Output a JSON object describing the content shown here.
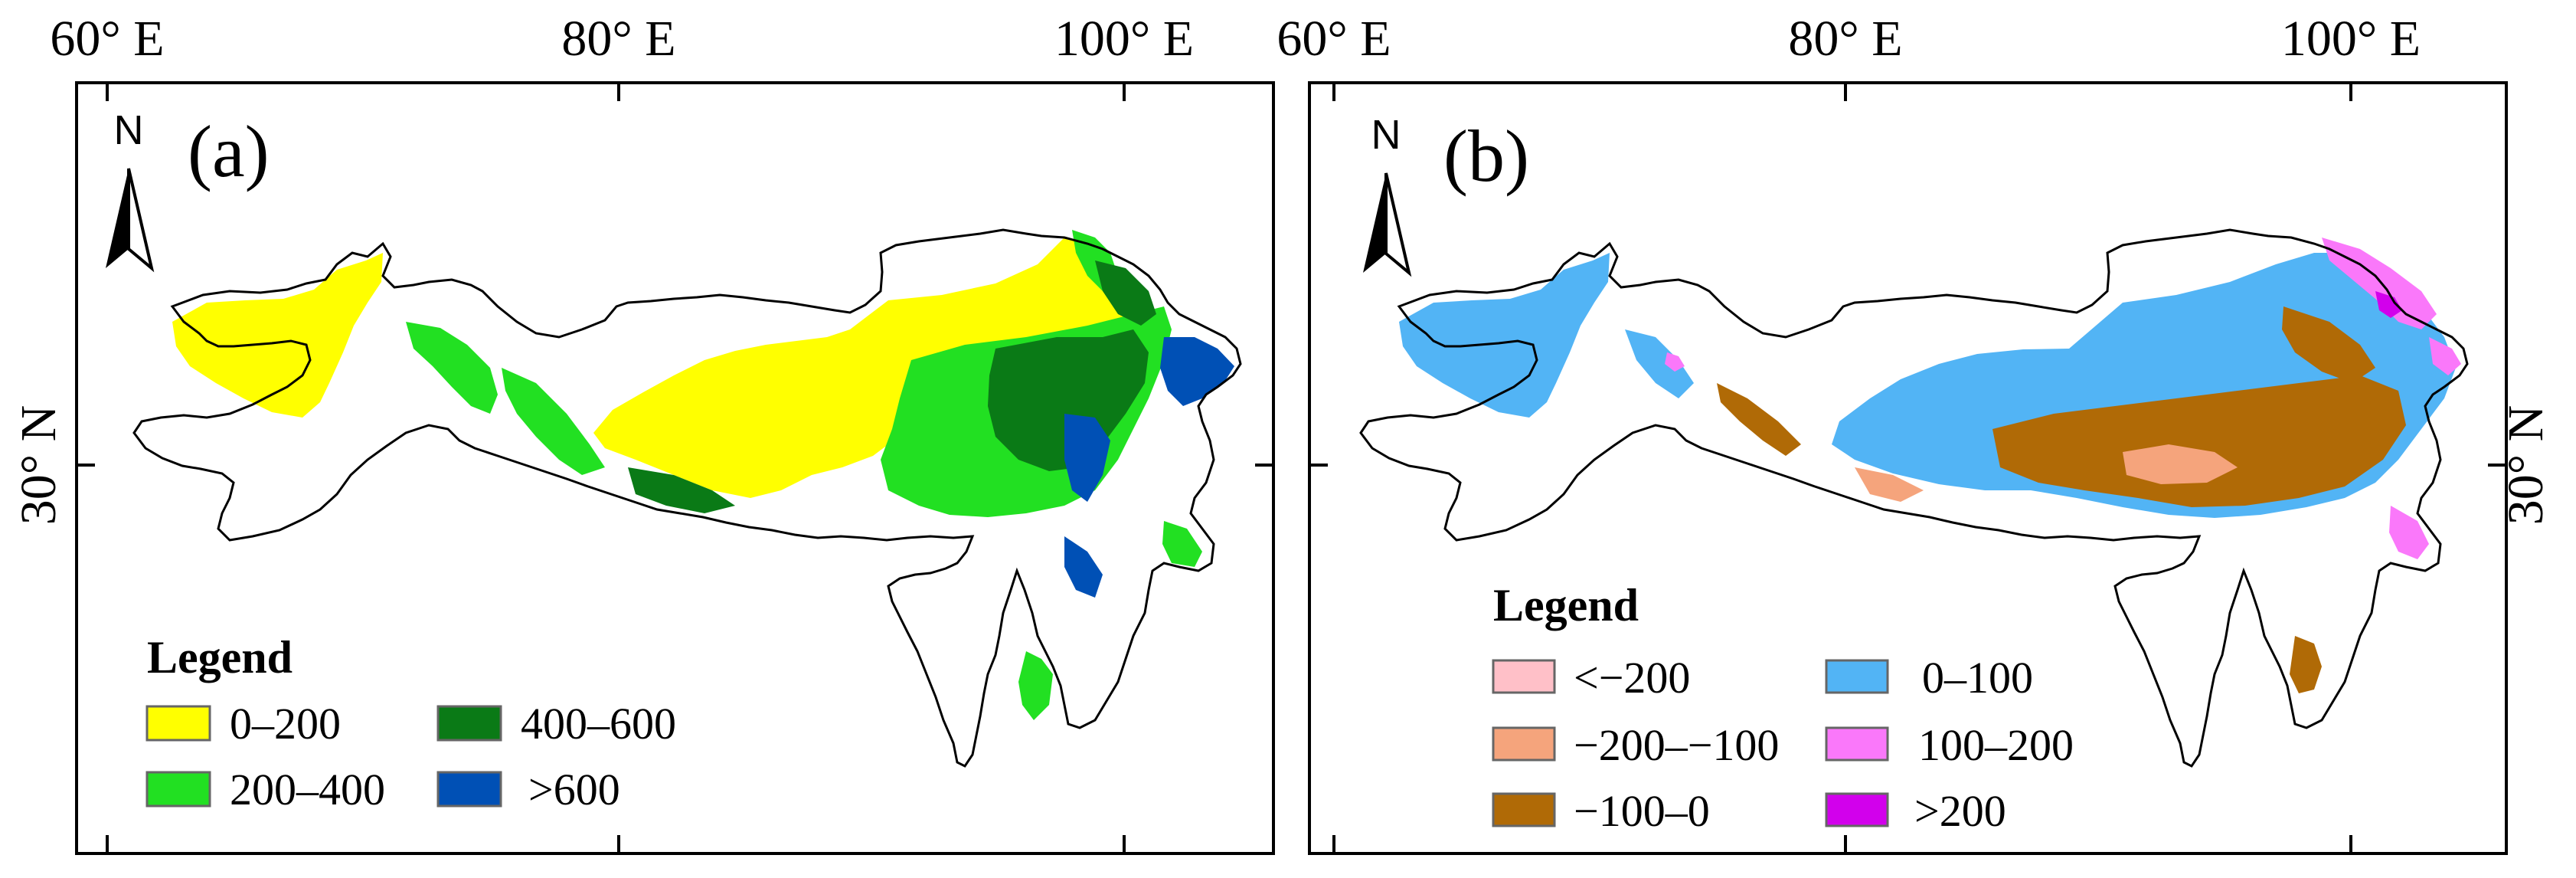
{
  "panels": [
    {
      "id": "a",
      "label": "(a)",
      "top_ticks": [
        "60° E",
        "80° E",
        "100° E"
      ],
      "lat_label": "30° N",
      "north_label": "N",
      "legend": {
        "title": "Legend",
        "items": [
          {
            "label": "0–200",
            "color": "#ffff00"
          },
          {
            "label": "200–400",
            "color": "#22e022"
          },
          {
            "label": "400–600",
            "color": "#0a7a16"
          },
          {
            "label": ">600",
            "color": "#0050b5"
          }
        ]
      }
    },
    {
      "id": "b",
      "label": "(b)",
      "top_ticks": [
        "60° E",
        "80° E",
        "100° E"
      ],
      "lat_label": "30° N",
      "north_label": "N",
      "legend": {
        "title": "Legend",
        "items": [
          {
            "label": "<−200",
            "color": "#ffc0c8"
          },
          {
            "label": "−200–−100",
            "color": "#f5a47c"
          },
          {
            "label": "−100–0",
            "color": "#b06a06"
          },
          {
            "label": "0–100",
            "color": "#52b4f5"
          },
          {
            "label": "100–200",
            "color": "#fa78fa"
          },
          {
            "label": ">200",
            "color": "#d200ec"
          }
        ]
      }
    }
  ]
}
